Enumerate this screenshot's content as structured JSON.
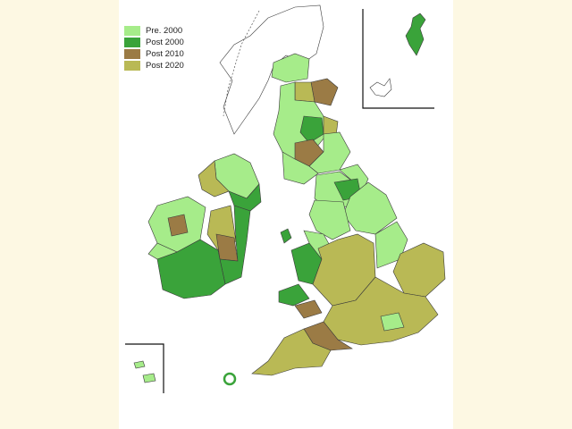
{
  "legend": {
    "items": [
      {
        "label": "Pre.  2000",
        "color": "#a6ec8a"
      },
      {
        "label": "Post 2000",
        "color": "#3aa33a"
      },
      {
        "label": "Post 2010",
        "color": "#9b7b45"
      },
      {
        "label": "Post 2020",
        "color": "#b9b955"
      }
    ]
  },
  "colors": {
    "pre2000": "#a6ec8a",
    "post2000": "#3aa33a",
    "post2010": "#9b7b45",
    "post2020": "#b9b955",
    "unshaded": "#ffffff",
    "outline": "#3a3a3a",
    "page_background": "#fdf8e3"
  },
  "map": {
    "subject": "United Kingdom and Ireland counties",
    "insets": [
      "Shetland",
      "Orkney",
      "Channel Islands"
    ]
  }
}
